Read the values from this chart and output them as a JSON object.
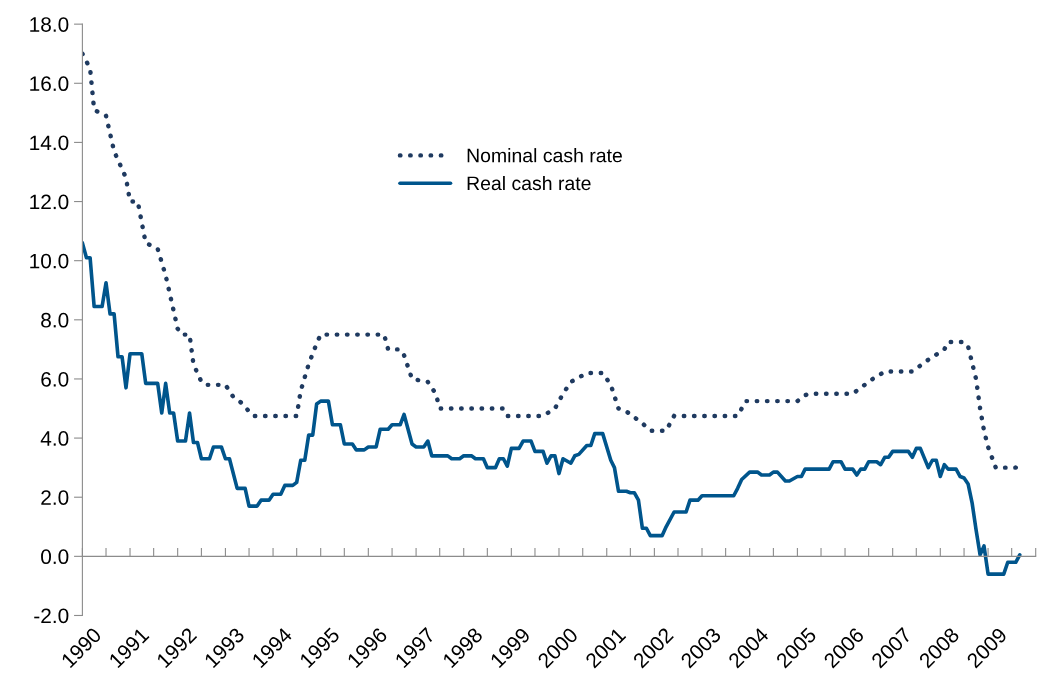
{
  "chart_data": {
    "type": "line",
    "xlim": [
      "1990-01",
      "2010-01"
    ],
    "xticks": [
      {
        "value": "1990-01",
        "label": "1990"
      },
      {
        "value": "1990-07",
        "label": null
      },
      {
        "value": "1991-01",
        "label": "1991"
      },
      {
        "value": "1991-07",
        "label": null
      },
      {
        "value": "1992-01",
        "label": "1992"
      },
      {
        "value": "1992-07",
        "label": null
      },
      {
        "value": "1993-01",
        "label": "1993"
      },
      {
        "value": "1993-07",
        "label": null
      },
      {
        "value": "1994-01",
        "label": "1994"
      },
      {
        "value": "1994-07",
        "label": null
      },
      {
        "value": "1995-01",
        "label": "1995"
      },
      {
        "value": "1995-07",
        "label": null
      },
      {
        "value": "1996-01",
        "label": "1996"
      },
      {
        "value": "1996-07",
        "label": null
      },
      {
        "value": "1997-01",
        "label": "1997"
      },
      {
        "value": "1997-07",
        "label": null
      },
      {
        "value": "1998-01",
        "label": "1998"
      },
      {
        "value": "1998-07",
        "label": null
      },
      {
        "value": "1999-01",
        "label": "1999"
      },
      {
        "value": "1999-07",
        "label": null
      },
      {
        "value": "2000-01",
        "label": "2000"
      },
      {
        "value": "2000-07",
        "label": null
      },
      {
        "value": "2001-01",
        "label": "2001"
      },
      {
        "value": "2001-07",
        "label": null
      },
      {
        "value": "2002-01",
        "label": "2002"
      },
      {
        "value": "2002-07",
        "label": null
      },
      {
        "value": "2003-01",
        "label": "2003"
      },
      {
        "value": "2003-07",
        "label": null
      },
      {
        "value": "2004-01",
        "label": "2004"
      },
      {
        "value": "2004-07",
        "label": null
      },
      {
        "value": "2005-01",
        "label": "2005"
      },
      {
        "value": "2005-07",
        "label": null
      },
      {
        "value": "2006-01",
        "label": "2006"
      },
      {
        "value": "2006-07",
        "label": null
      },
      {
        "value": "2007-01",
        "label": "2007"
      },
      {
        "value": "2007-07",
        "label": null
      },
      {
        "value": "2008-01",
        "label": "2008"
      },
      {
        "value": "2008-07",
        "label": null
      },
      {
        "value": "2009-01",
        "label": "2009"
      },
      {
        "value": "2009-07",
        "label": null
      },
      {
        "value": "2010-01",
        "label": null
      }
    ],
    "ylim": [
      -2,
      18
    ],
    "yticks": [
      {
        "value": -2,
        "label": "-2.0"
      },
      {
        "value": 0,
        "label": "0.0"
      },
      {
        "value": 2,
        "label": "2.0"
      },
      {
        "value": 4,
        "label": "4.0"
      },
      {
        "value": 6,
        "label": "6.0"
      },
      {
        "value": 8,
        "label": "8.0"
      },
      {
        "value": 10,
        "label": "10.0"
      },
      {
        "value": 12,
        "label": "12.0"
      },
      {
        "value": 14,
        "label": "14.0"
      },
      {
        "value": 16,
        "label": "16.0"
      },
      {
        "value": 18,
        "label": "18.0"
      }
    ],
    "legend": "top",
    "marker": "none",
    "series": [
      {
        "name": "Nominal cash rate",
        "color": "#1f3a60",
        "line_style": "dotted",
        "x": [
          "1990-01",
          "1990-03",
          "1990-04",
          "1990-07",
          "1990-09",
          "1990-12",
          "1991-01",
          "1991-03",
          "1991-05",
          "1991-08",
          "1991-10",
          "1992-01",
          "1992-02",
          "1992-04",
          "1992-05",
          "1992-07",
          "1992-08",
          "1993-01",
          "1993-03",
          "1993-05",
          "1993-08",
          "1994-07",
          "1994-08",
          "1994-10",
          "1994-12",
          "1995-01",
          "1996-05",
          "1996-06",
          "1996-09",
          "1996-10",
          "1996-12",
          "1997-04",
          "1997-06",
          "1997-07",
          "1998-11",
          "1998-12",
          "1999-09",
          "1999-12",
          "2000-02",
          "2000-04",
          "2000-08",
          "2000-12",
          "2001-02",
          "2001-04",
          "2001-06",
          "2001-10",
          "2001-12",
          "2002-04",
          "2002-06",
          "2003-10",
          "2003-11",
          "2003-12",
          "2005-01",
          "2005-03",
          "2005-04",
          "2006-03",
          "2006-05",
          "2006-08",
          "2006-11",
          "2007-06",
          "2007-10",
          "2008-02",
          "2008-03",
          "2008-07",
          "2008-08",
          "2008-10",
          "2008-11",
          "2008-12",
          "2009-01",
          "2009-03",
          "2009-08",
          "2009-09"
        ],
        "values": [
          17.0,
          16.5,
          15.1,
          14.9,
          13.7,
          12.8,
          12.0,
          12.0,
          10.6,
          10.4,
          9.5,
          7.7,
          7.5,
          7.5,
          6.5,
          5.9,
          5.8,
          5.8,
          5.4,
          5.2,
          4.75,
          4.75,
          5.6,
          6.5,
          7.2,
          7.5,
          7.5,
          7.0,
          7.0,
          6.8,
          6.0,
          5.9,
          5.5,
          5.0,
          5.0,
          4.75,
          4.75,
          5.0,
          5.5,
          5.9,
          6.2,
          6.2,
          5.8,
          5.0,
          4.9,
          4.5,
          4.25,
          4.25,
          4.75,
          4.75,
          5.0,
          5.25,
          5.25,
          5.45,
          5.5,
          5.5,
          5.7,
          6.0,
          6.25,
          6.25,
          6.65,
          7.0,
          7.25,
          7.25,
          7.1,
          6.0,
          5.0,
          4.25,
          3.7,
          3.0,
          3.0,
          3.25
        ]
      },
      {
        "name": "Real cash rate",
        "color": "#00558c",
        "line_style": "solid",
        "x": [
          "1990-01",
          "1990-02",
          "1990-03",
          "1990-04",
          "1990-06",
          "1990-07",
          "1990-08",
          "1990-09",
          "1990-10",
          "1990-11",
          "1990-12",
          "1991-01",
          "1991-04",
          "1991-05",
          "1991-08",
          "1991-09",
          "1991-10",
          "1991-11",
          "1991-12",
          "1992-01",
          "1992-03",
          "1992-04",
          "1992-05",
          "1992-06",
          "1992-07",
          "1992-09",
          "1992-10",
          "1992-12",
          "1993-01",
          "1993-02",
          "1993-04",
          "1993-06",
          "1993-07",
          "1993-09",
          "1993-10",
          "1993-12",
          "1994-01",
          "1994-03",
          "1994-04",
          "1994-06",
          "1994-07",
          "1994-08",
          "1994-09",
          "1994-10",
          "1994-11",
          "1994-12",
          "1995-01",
          "1995-03",
          "1995-04",
          "1995-06",
          "1995-07",
          "1995-09",
          "1995-10",
          "1995-12",
          "1996-01",
          "1996-03",
          "1996-04",
          "1996-06",
          "1996-07",
          "1996-09",
          "1996-10",
          "1996-12",
          "1997-01",
          "1997-03",
          "1997-04",
          "1997-05",
          "1997-09",
          "1997-10",
          "1997-12",
          "1998-01",
          "1998-03",
          "1998-04",
          "1998-06",
          "1998-07",
          "1998-09",
          "1998-10",
          "1998-11",
          "1998-12",
          "1999-01",
          "1999-03",
          "1999-04",
          "1999-06",
          "1999-07",
          "1999-09",
          "1999-10",
          "1999-11",
          "1999-12",
          "2000-01",
          "2000-02",
          "2000-04",
          "2000-05",
          "2000-06",
          "2000-08",
          "2000-09",
          "2000-10",
          "2000-12",
          "2001-02",
          "2001-03",
          "2001-04",
          "2001-06",
          "2001-07",
          "2001-08",
          "2001-09",
          "2001-10",
          "2001-11",
          "2001-12",
          "2002-03",
          "2002-04",
          "2002-06",
          "2002-09",
          "2002-10",
          "2002-12",
          "2003-01",
          "2003-09",
          "2003-10",
          "2003-11",
          "2004-01",
          "2004-03",
          "2004-04",
          "2004-06",
          "2004-07",
          "2004-08",
          "2004-10",
          "2004-11",
          "2005-01",
          "2005-02",
          "2005-03",
          "2005-09",
          "2005-10",
          "2005-12",
          "2006-01",
          "2006-03",
          "2006-04",
          "2006-05",
          "2006-06",
          "2006-07",
          "2006-09",
          "2006-10",
          "2006-11",
          "2006-12",
          "2007-01",
          "2007-05",
          "2007-06",
          "2007-07",
          "2007-08",
          "2007-10",
          "2007-11",
          "2007-12",
          "2008-01",
          "2008-02",
          "2008-03",
          "2008-05",
          "2008-06",
          "2008-07",
          "2008-08",
          "2008-09",
          "2008-10",
          "2008-11",
          "2008-12",
          "2009-01",
          "2009-03",
          "2009-05",
          "2009-06",
          "2009-08",
          "2009-09"
        ],
        "values": [
          10.6,
          10.1,
          10.1,
          8.45,
          8.45,
          9.25,
          8.2,
          8.2,
          6.75,
          6.75,
          5.7,
          6.85,
          6.85,
          5.85,
          5.85,
          4.85,
          5.85,
          4.85,
          4.85,
          3.9,
          3.9,
          4.85,
          3.85,
          3.85,
          3.3,
          3.3,
          3.7,
          3.7,
          3.3,
          3.3,
          2.3,
          2.3,
          1.7,
          1.7,
          1.9,
          1.9,
          2.1,
          2.1,
          2.4,
          2.4,
          2.5,
          3.25,
          3.25,
          4.1,
          4.1,
          5.15,
          5.25,
          5.25,
          4.45,
          4.45,
          3.8,
          3.8,
          3.6,
          3.6,
          3.7,
          3.7,
          4.3,
          4.3,
          4.45,
          4.45,
          4.8,
          3.8,
          3.7,
          3.7,
          3.9,
          3.4,
          3.4,
          3.3,
          3.3,
          3.4,
          3.4,
          3.3,
          3.3,
          3.0,
          3.0,
          3.3,
          3.3,
          3.05,
          3.65,
          3.65,
          3.9,
          3.9,
          3.55,
          3.55,
          3.15,
          3.4,
          3.4,
          2.8,
          3.3,
          3.15,
          3.4,
          3.45,
          3.75,
          3.75,
          4.15,
          4.15,
          3.25,
          3.0,
          2.2,
          2.2,
          2.15,
          2.15,
          1.9,
          0.95,
          0.95,
          0.7,
          0.7,
          1.0,
          1.5,
          1.5,
          1.9,
          1.9,
          2.05,
          2.05,
          2.3,
          2.6,
          2.85,
          2.85,
          2.75,
          2.75,
          2.85,
          2.85,
          2.55,
          2.55,
          2.7,
          2.7,
          2.95,
          2.95,
          3.2,
          3.2,
          2.95,
          2.95,
          2.75,
          2.95,
          2.95,
          3.2,
          3.2,
          3.1,
          3.35,
          3.35,
          3.55,
          3.55,
          3.35,
          3.65,
          3.65,
          3.0,
          3.25,
          3.25,
          2.7,
          3.1,
          2.95,
          2.95,
          2.7,
          2.65,
          2.45,
          1.8,
          0.9,
          0.05,
          0.35,
          -0.6,
          -0.6,
          -0.6,
          -0.2,
          -0.2,
          0.05
        ]
      }
    ]
  }
}
